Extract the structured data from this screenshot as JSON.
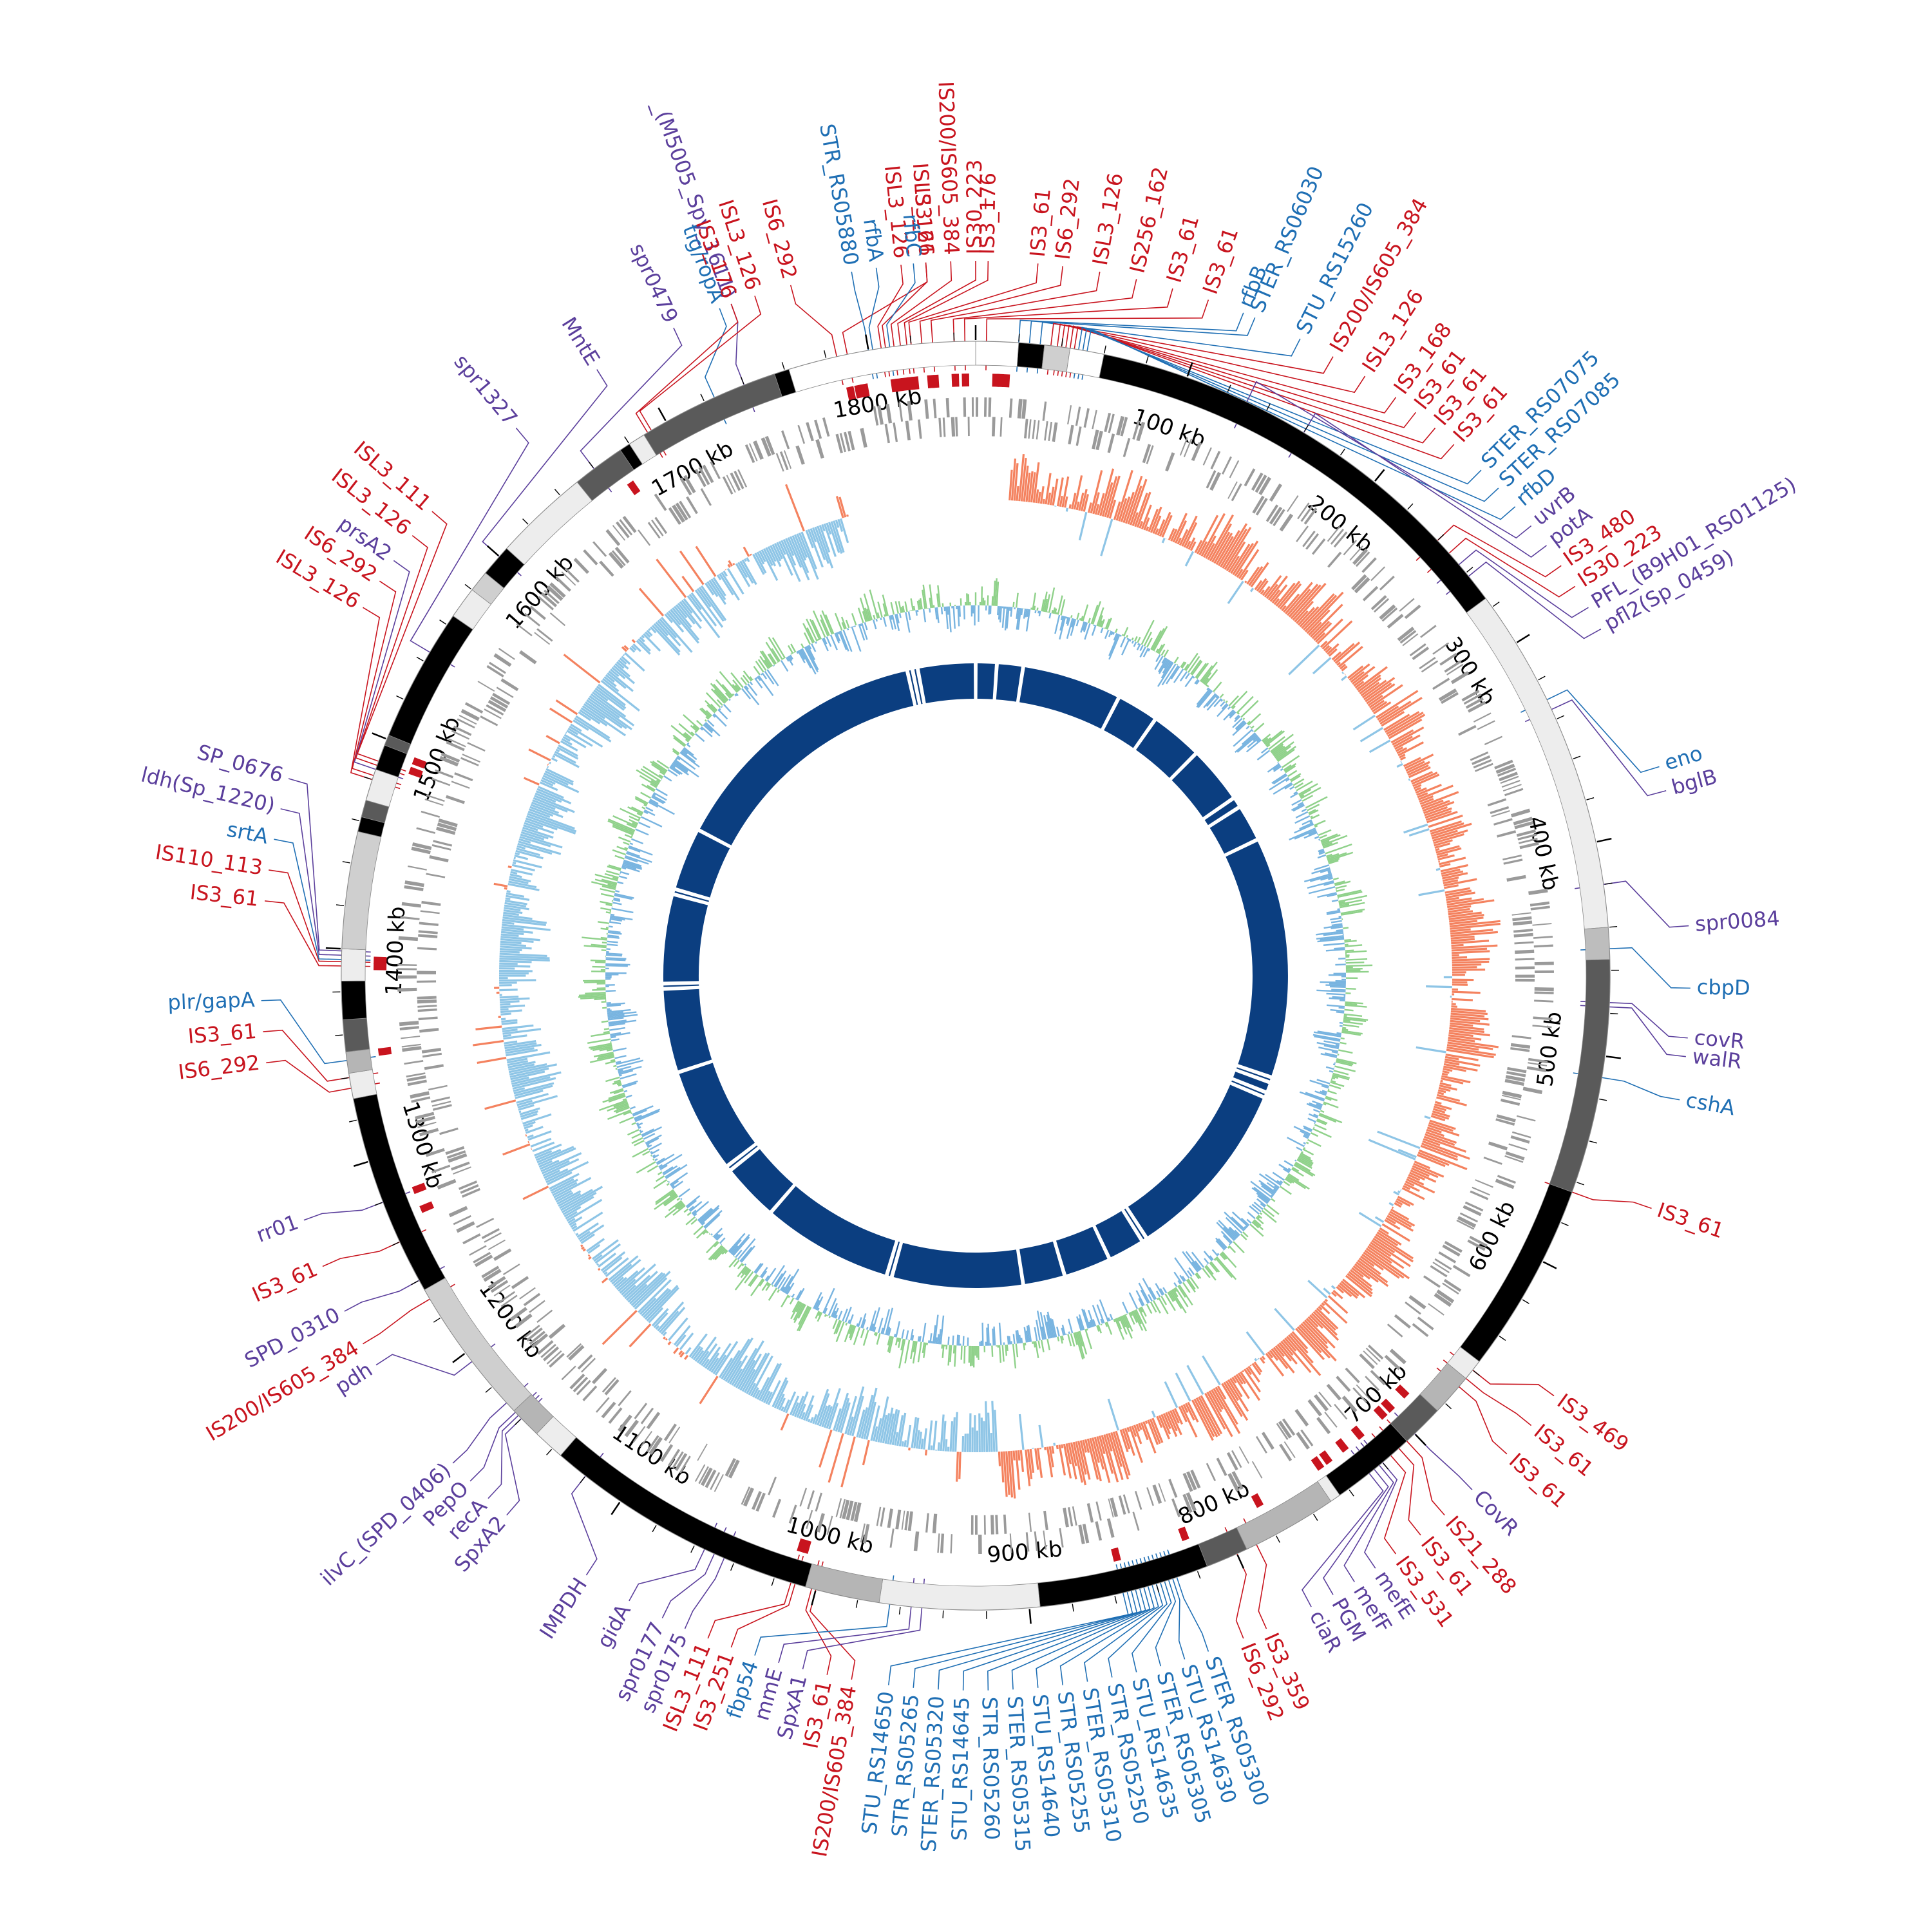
{
  "genome": {
    "length_kb": 1850,
    "tick_labels": [
      "100 kb",
      "200 kb",
      "300 kb",
      "400 kb",
      "500 kb",
      "600 kb",
      "700 kb",
      "800 kb",
      "900 kb",
      "1000 kb",
      "1100 kb",
      "1200 kb",
      "1300 kb",
      "1400 kb",
      "1500 kb",
      "1600 kb",
      "1700 kb",
      "1800 kb"
    ],
    "tick_positions_kb": [
      100,
      200,
      300,
      400,
      500,
      600,
      700,
      800,
      900,
      1000,
      1100,
      1200,
      1300,
      1400,
      1500,
      1600,
      1700,
      1800
    ]
  },
  "colors": {
    "is_element": "#c8141e",
    "blue_gene": "#1f6fb4",
    "purple_gene": "#5b3f9c",
    "gc_skew_positive": "#f4825f",
    "gc_skew_negative": "#8ec5e6",
    "gc_content_green": "#8fd18a",
    "gc_content_blue": "#78b4e0",
    "synteny_ring": "#0b3e80",
    "cds_gray": "#9a9a9a"
  },
  "contigs": [
    {
      "start": 0,
      "end": 20,
      "shade": "#ffffff"
    },
    {
      "start": 20,
      "end": 32,
      "shade": "#000000"
    },
    {
      "start": 32,
      "end": 44,
      "shade": "#cfcfcf"
    },
    {
      "start": 44,
      "end": 60,
      "shade": "#ffffff"
    },
    {
      "start": 60,
      "end": 275,
      "shade": "#000000"
    },
    {
      "start": 275,
      "end": 440,
      "shade": "#ededed"
    },
    {
      "start": 440,
      "end": 455,
      "shade": "#bdbdbd"
    },
    {
      "start": 455,
      "end": 565,
      "shade": "#5a5a5a"
    },
    {
      "start": 565,
      "end": 655,
      "shade": "#000000"
    },
    {
      "start": 655,
      "end": 665,
      "shade": "#ededed"
    },
    {
      "start": 665,
      "end": 685,
      "shade": "#b5b5b5"
    },
    {
      "start": 685,
      "end": 705,
      "shade": "#5a5a5a"
    },
    {
      "start": 705,
      "end": 745,
      "shade": "#000000"
    },
    {
      "start": 745,
      "end": 750,
      "shade": "#ededed"
    },
    {
      "start": 750,
      "end": 795,
      "shade": "#b5b5b5"
    },
    {
      "start": 795,
      "end": 815,
      "shade": "#5a5a5a"
    },
    {
      "start": 815,
      "end": 895,
      "shade": "#000000"
    },
    {
      "start": 895,
      "end": 970,
      "shade": "#ededed"
    },
    {
      "start": 970,
      "end": 1005,
      "shade": "#b5b5b5"
    },
    {
      "start": 1005,
      "end": 1135,
      "shade": "#000000"
    },
    {
      "start": 1135,
      "end": 1150,
      "shade": "#ededed"
    },
    {
      "start": 1150,
      "end": 1165,
      "shade": "#b5b5b5"
    },
    {
      "start": 1165,
      "end": 1235,
      "shade": "#cfcfcf"
    },
    {
      "start": 1235,
      "end": 1330,
      "shade": "#000000"
    },
    {
      "start": 1330,
      "end": 1342,
      "shade": "#ededed"
    },
    {
      "start": 1342,
      "end": 1352,
      "shade": "#b5b5b5"
    },
    {
      "start": 1352,
      "end": 1367,
      "shade": "#5a5a5a"
    },
    {
      "start": 1367,
      "end": 1385,
      "shade": "#000000"
    },
    {
      "start": 1385,
      "end": 1400,
      "shade": "#ededed"
    },
    {
      "start": 1400,
      "end": 1455,
      "shade": "#cfcfcf"
    },
    {
      "start": 1455,
      "end": 1462,
      "shade": "#000000"
    },
    {
      "start": 1462,
      "end": 1470,
      "shade": "#5a5a5a"
    },
    {
      "start": 1470,
      "end": 1485,
      "shade": "#ededed"
    },
    {
      "start": 1485,
      "end": 1497,
      "shade": "#000000"
    },
    {
      "start": 1497,
      "end": 1502,
      "shade": "#5a5a5a"
    },
    {
      "start": 1502,
      "end": 1565,
      "shade": "#000000"
    },
    {
      "start": 1565,
      "end": 1580,
      "shade": "#ededed"
    },
    {
      "start": 1580,
      "end": 1590,
      "shade": "#cfcfcf"
    },
    {
      "start": 1590,
      "end": 1605,
      "shade": "#000000"
    },
    {
      "start": 1605,
      "end": 1650,
      "shade": "#ededed"
    },
    {
      "start": 1650,
      "end": 1675,
      "shade": "#5a5a5a"
    },
    {
      "start": 1675,
      "end": 1680,
      "shade": "#000000"
    },
    {
      "start": 1680,
      "end": 1688,
      "shade": "#ededed"
    },
    {
      "start": 1688,
      "end": 1755,
      "shade": "#5a5a5a"
    },
    {
      "start": 1755,
      "end": 1762,
      "shade": "#000000"
    },
    {
      "start": 1762,
      "end": 1850,
      "shade": "#ffffff"
    }
  ],
  "labels": [
    {
      "text": "IS3_61",
      "kind": "is",
      "pos": 1790,
      "angle": -94
    },
    {
      "text": "IS6_292",
      "kind": "is",
      "pos": 1785,
      "angle": -105
    },
    {
      "text": "STR_RS05880",
      "kind": "blue",
      "pos": 1800,
      "angle": -100
    },
    {
      "text": "_(M5005_Spy_1611)",
      "kind": "purple",
      "pos": 1740,
      "angle": -110
    },
    {
      "text": "tig/ropA",
      "kind": "blue",
      "pos": 1725,
      "angle": -111
    },
    {
      "text": "rfbA",
      "kind": "blue",
      "pos": 1802,
      "angle": -98
    },
    {
      "text": "IS200/IS605_384",
      "kind": "is",
      "pos": 1812,
      "angle": -92
    },
    {
      "text": "ISL3_126",
      "kind": "is",
      "pos": 1806,
      "angle": -96
    },
    {
      "text": "ISL3_126",
      "kind": "is",
      "pos": 1808,
      "angle": -94
    },
    {
      "text": "rfbC",
      "kind": "blue",
      "pos": 1810,
      "angle": -95
    },
    {
      "text": "IS30_223",
      "kind": "is",
      "pos": 1815,
      "angle": -90
    },
    {
      "text": "IS3_176",
      "kind": "is",
      "pos": 1818,
      "angle": -89
    },
    {
      "text": "IS3_61",
      "kind": "is",
      "pos": 1820,
      "angle": -85
    },
    {
      "text": "IS6_292",
      "kind": "is",
      "pos": 1825,
      "angle": -83
    },
    {
      "text": "ISL3_126",
      "kind": "is",
      "pos": 1830,
      "angle": -80
    },
    {
      "text": "IS256_162",
      "kind": "is",
      "pos": 1840,
      "angle": -77
    },
    {
      "text": "IS3_61",
      "kind": "is",
      "pos": 1845,
      "angle": -74
    },
    {
      "text": "IS3_61",
      "kind": "is",
      "pos": 5,
      "angle": -71
    },
    {
      "text": "rfbB",
      "kind": "blue",
      "pos": 20,
      "angle": -68
    },
    {
      "text": "STER_RS06030",
      "kind": "blue",
      "pos": 25,
      "angle": -67
    },
    {
      "text": "STU_RS15260",
      "kind": "blue",
      "pos": 30,
      "angle": -63
    },
    {
      "text": "IS200/IS605_384",
      "kind": "is",
      "pos": 35,
      "angle": -60
    },
    {
      "text": "ISL3_126",
      "kind": "is",
      "pos": 38,
      "angle": -57
    },
    {
      "text": "IS3_168",
      "kind": "is",
      "pos": 40,
      "angle": -54
    },
    {
      "text": "IS3_61",
      "kind": "is",
      "pos": 42,
      "angle": -52
    },
    {
      "text": "IS3_61",
      "kind": "is",
      "pos": 44,
      "angle": -50
    },
    {
      "text": "IS3_61",
      "kind": "is",
      "pos": 46,
      "angle": -48
    },
    {
      "text": "STER_RS07075",
      "kind": "blue",
      "pos": 48,
      "angle": -45
    },
    {
      "text": "STER_RS07085",
      "kind": "blue",
      "pos": 50,
      "angle": -43
    },
    {
      "text": "rfbD",
      "kind": "blue",
      "pos": 52,
      "angle": -41
    },
    {
      "text": "uvrB",
      "kind": "purple",
      "pos": 130,
      "angle": -39
    },
    {
      "text": "potA",
      "kind": "purple",
      "pos": 160,
      "angle": -37
    },
    {
      "text": "IS3_480",
      "kind": "is",
      "pos": 240,
      "angle": -35
    },
    {
      "text": "IS30_223",
      "kind": "is",
      "pos": 248,
      "angle": -33
    },
    {
      "text": "PFL_(B9H01_RS01125)",
      "kind": "purple",
      "pos": 255,
      "angle": -31
    },
    {
      "text": "pfl2(Sp_0459)",
      "kind": "purple",
      "pos": 262,
      "angle": -29
    },
    {
      "text": "eno",
      "kind": "blue",
      "pos": 330,
      "angle": -17
    },
    {
      "text": "bglB",
      "kind": "purple",
      "pos": 335,
      "angle": -15
    },
    {
      "text": "spr0084",
      "kind": "purple",
      "pos": 420,
      "angle": -4
    },
    {
      "text": "cbpD",
      "kind": "blue",
      "pos": 450,
      "angle": 1
    },
    {
      "text": "covR",
      "kind": "purple",
      "pos": 475,
      "angle": 5
    },
    {
      "text": "walR",
      "kind": "purple",
      "pos": 477,
      "angle": 6.5
    },
    {
      "text": "cshA",
      "kind": "blue",
      "pos": 510,
      "angle": 10
    },
    {
      "text": "IS3_61",
      "kind": "is",
      "pos": 565,
      "angle": 19
    },
    {
      "text": "IS3_469",
      "kind": "is",
      "pos": 660,
      "angle": 36
    },
    {
      "text": "IS3_61",
      "kind": "is",
      "pos": 665,
      "angle": 39
    },
    {
      "text": "IS3_61",
      "kind": "is",
      "pos": 670,
      "angle": 42
    },
    {
      "text": "CovR",
      "kind": "purple",
      "pos": 700,
      "angle": 46
    },
    {
      "text": "IS21_288",
      "kind": "is",
      "pos": 705,
      "angle": 49
    },
    {
      "text": "IS3_61",
      "kind": "is",
      "pos": 710,
      "angle": 51.5
    },
    {
      "text": "IS3_531",
      "kind": "is",
      "pos": 715,
      "angle": 54
    },
    {
      "text": "mefE",
      "kind": "purple",
      "pos": 720,
      "angle": 56
    },
    {
      "text": "mefF",
      "kind": "purple",
      "pos": 722,
      "angle": 58
    },
    {
      "text": "PGM",
      "kind": "purple",
      "pos": 725,
      "angle": 60
    },
    {
      "text": "ciaR",
      "kind": "purple",
      "pos": 728,
      "angle": 62
    },
    {
      "text": "IS3_359",
      "kind": "is",
      "pos": 790,
      "angle": 66
    },
    {
      "text": "IS6_292",
      "kind": "is",
      "pos": 800,
      "angle": 68
    },
    {
      "text": "STER_RS05300",
      "kind": "blue",
      "pos": 830,
      "angle": 71
    },
    {
      "text": "STU_RS14630",
      "kind": "blue",
      "pos": 832,
      "angle": 73
    },
    {
      "text": "STER_RS05305",
      "kind": "blue",
      "pos": 834,
      "angle": 75
    },
    {
      "text": "STU_RS14635",
      "kind": "blue",
      "pos": 836,
      "angle": 77
    },
    {
      "text": "STR_RS05250",
      "kind": "blue",
      "pos": 838,
      "angle": 79
    },
    {
      "text": "STER_RS05310",
      "kind": "blue",
      "pos": 840,
      "angle": 81
    },
    {
      "text": "STR_RS05255",
      "kind": "blue",
      "pos": 842,
      "angle": 83
    },
    {
      "text": "STU_RS14640",
      "kind": "blue",
      "pos": 844,
      "angle": 85
    },
    {
      "text": "STER_RS05315",
      "kind": "blue",
      "pos": 846,
      "angle": 87
    },
    {
      "text": "STR_RS05260",
      "kind": "blue",
      "pos": 848,
      "angle": 89
    },
    {
      "text": "STU_RS14645",
      "kind": "blue",
      "pos": 850,
      "angle": 91
    },
    {
      "text": "STER_RS05320",
      "kind": "blue",
      "pos": 852,
      "angle": 93
    },
    {
      "text": "STR_RS05265",
      "kind": "blue",
      "pos": 854,
      "angle": 95
    },
    {
      "text": "STU_RS14650",
      "kind": "blue",
      "pos": 856,
      "angle": 97
    },
    {
      "text": "IS200/IS605_384",
      "kind": "is",
      "pos": 1000,
      "angle": 100
    },
    {
      "text": "IS3_61",
      "kind": "is",
      "pos": 1002,
      "angle": 102
    },
    {
      "text": "SpxA1",
      "kind": "purple",
      "pos": 950,
      "angle": 104
    },
    {
      "text": "mmE",
      "kind": "purple",
      "pos": 955,
      "angle": 106
    },
    {
      "text": "fbp54",
      "kind": "blue",
      "pos": 965,
      "angle": 108
    },
    {
      "text": "IS3_251",
      "kind": "is",
      "pos": 1010,
      "angle": 110
    },
    {
      "text": "ISL3_111",
      "kind": "is",
      "pos": 1012,
      "angle": 112
    },
    {
      "text": "spr0175",
      "kind": "purple",
      "pos": 1045,
      "angle": 114
    },
    {
      "text": "spr0177",
      "kind": "purple",
      "pos": 1050,
      "angle": 116
    },
    {
      "text": "gidA",
      "kind": "purple",
      "pos": 1055,
      "angle": 119
    },
    {
      "text": "IMPDH",
      "kind": "purple",
      "pos": 1120,
      "angle": 123
    },
    {
      "text": "SpxA2",
      "kind": "purple",
      "pos": 1160,
      "angle": 131
    },
    {
      "text": "recA",
      "kind": "purple",
      "pos": 1162,
      "angle": 133
    },
    {
      "text": "PepO",
      "kind": "purple",
      "pos": 1164,
      "angle": 135
    },
    {
      "text": "ilvC_(SPD_0406)",
      "kind": "purple",
      "pos": 1170,
      "angle": 137
    },
    {
      "text": "pdh",
      "kind": "purple",
      "pos": 1195,
      "angle": 147
    },
    {
      "text": "IS200/IS605_384",
      "kind": "is",
      "pos": 1230,
      "angle": 149
    },
    {
      "text": "SPD_0310",
      "kind": "purple",
      "pos": 1240,
      "angle": 152
    },
    {
      "text": "IS3_61",
      "kind": "is",
      "pos": 1260,
      "angle": 156
    },
    {
      "text": "rr01",
      "kind": "purple",
      "pos": 1280,
      "angle": 160
    },
    {
      "text": "IS6_292",
      "kind": "is",
      "pos": 1335,
      "angle": 173
    },
    {
      "text": "IS3_61",
      "kind": "is",
      "pos": 1340,
      "angle": 175.5
    },
    {
      "text": "plr/gapA",
      "kind": "blue",
      "pos": 1348,
      "angle": 178
    },
    {
      "text": "IS3_61",
      "kind": "is",
      "pos": 1392,
      "angle": 186
    },
    {
      "text": "IS110_113",
      "kind": "is",
      "pos": 1394,
      "angle": 188.5
    },
    {
      "text": "srtA",
      "kind": "blue",
      "pos": 1395,
      "angle": 191
    },
    {
      "text": "ldh(Sp_1220)",
      "kind": "purple",
      "pos": 1397,
      "angle": 193.5
    },
    {
      "text": "SP_0676",
      "kind": "purple",
      "pos": 1399,
      "angle": 196
    },
    {
      "text": "ISL3_126",
      "kind": "is",
      "pos": 1480,
      "angle": 211
    },
    {
      "text": "IS6_292",
      "kind": "is",
      "pos": 1482,
      "angle": 213.5
    },
    {
      "text": "prsA2",
      "kind": "purple",
      "pos": 1485,
      "angle": 215.5
    },
    {
      "text": "ISL3_126",
      "kind": "is",
      "pos": 1487,
      "angle": 218
    },
    {
      "text": "ISL3_111",
      "kind": "is",
      "pos": 1489,
      "angle": 220.5
    },
    {
      "text": "spr1327",
      "kind": "purple",
      "pos": 1545,
      "angle": 230
    },
    {
      "text": "MntE",
      "kind": "purple",
      "pos": 1600,
      "angle": 238
    },
    {
      "text": "spr0479",
      "kind": "purple",
      "pos": 1660,
      "angle": 245
    },
    {
      "text": "IS3_176",
      "kind": "is",
      "pos": 1690,
      "angle": 250
    },
    {
      "text": "ISL3_126",
      "kind": "is",
      "pos": 1692,
      "angle": 252
    }
  ],
  "is_marks_kb": [
    1788,
    1792,
    1795,
    1810,
    1812,
    1815,
    1818,
    1820,
    1828,
    1830,
    1840,
    1845,
    10,
    12,
    15,
    1670,
    690,
    700,
    705,
    720,
    730,
    740,
    745,
    780,
    820,
    855,
    1010,
    1012,
    1270,
    1280,
    1350,
    1392,
    1395,
    1490,
    1495
  ],
  "synteny_gaps_kb": [
    1785,
    1790,
    1795,
    1850,
    20,
    45,
    140,
    180,
    230,
    285,
    295,
    330,
    560,
    565,
    575,
    580,
    755,
    760,
    795,
    840,
    880,
    1005,
    1010,
    1135,
    1190,
    1195,
    1295,
    1375,
    1380,
    1465,
    1470,
    1530
  ]
}
